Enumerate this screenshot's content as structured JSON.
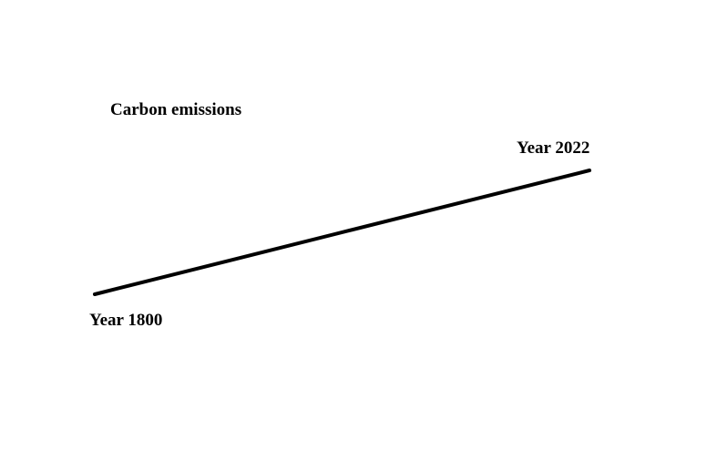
{
  "chart_data": {
    "type": "line",
    "title": "Carbon emissions",
    "xlabel": "",
    "ylabel": "",
    "grid": false,
    "line_color": "#000000",
    "series": [
      {
        "points": [
          {
            "x": 1800,
            "label": "Year 1800"
          },
          {
            "x": 2022,
            "label": "Year 2022"
          }
        ]
      }
    ]
  }
}
